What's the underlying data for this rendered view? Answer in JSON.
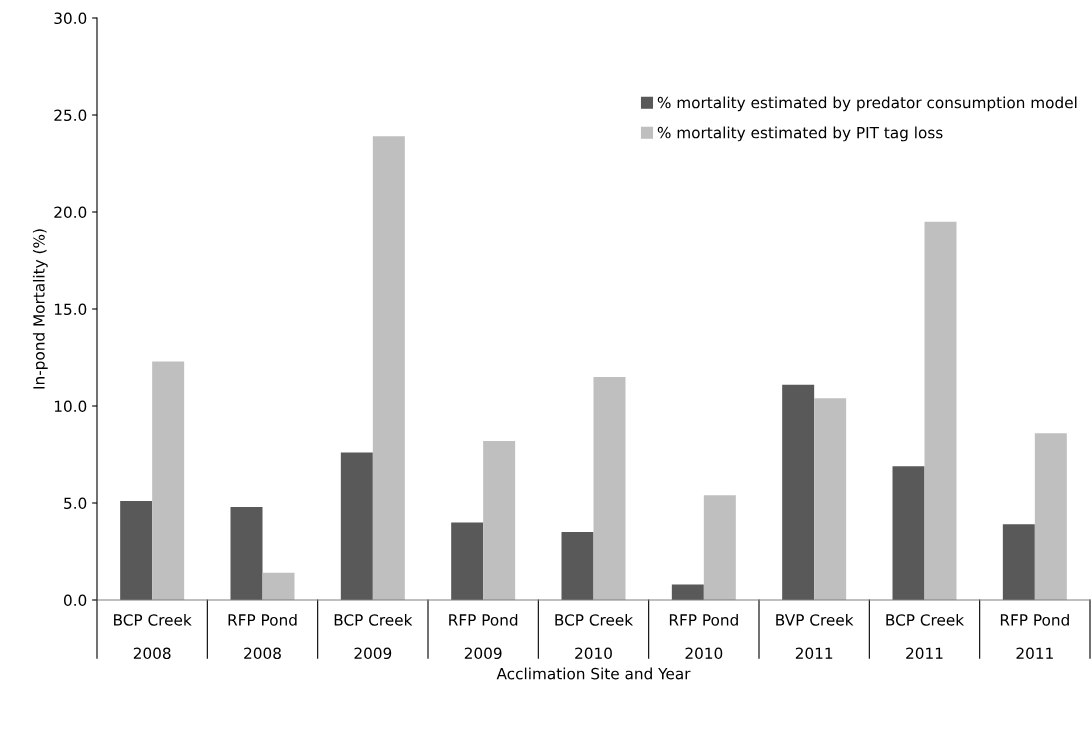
{
  "chart_data": {
    "type": "bar",
    "xlabel": "Acclimation Site and Year",
    "ylabel": "In-pond Mortality (%)",
    "categories": [
      "BCP Creek\n2008",
      "RFP Pond\n2008",
      "BCP Creek\n2009",
      "RFP Pond\n2009",
      "BCP Creek\n2010",
      "RFP Pond\n2010",
      "BVP Creek\n2011",
      "BCP Creek\n2011",
      "RFP Pond\n2011"
    ],
    "series": [
      {
        "name": "% mortality estimated by predator consumption model",
        "color": "#595959",
        "values": [
          5.1,
          4.8,
          7.6,
          4.0,
          3.5,
          0.8,
          11.1,
          6.9,
          3.9
        ]
      },
      {
        "name": "% mortality estimated by PIT tag loss",
        "color": "#bfbfbf",
        "values": [
          12.3,
          1.4,
          23.9,
          8.2,
          11.5,
          5.4,
          10.4,
          19.5,
          8.6
        ]
      }
    ],
    "ylim": [
      0,
      30
    ],
    "yticks": [
      {
        "value": 0,
        "label": "0.0"
      },
      {
        "value": 5,
        "label": "5.0"
      },
      {
        "value": 10,
        "label": "10.0"
      },
      {
        "value": 15,
        "label": "15.0"
      },
      {
        "value": 20,
        "label": "20.0"
      },
      {
        "value": 25,
        "label": "25.0"
      },
      {
        "value": 30,
        "label": "30.0"
      }
    ],
    "grid": false,
    "legend": "top right"
  }
}
